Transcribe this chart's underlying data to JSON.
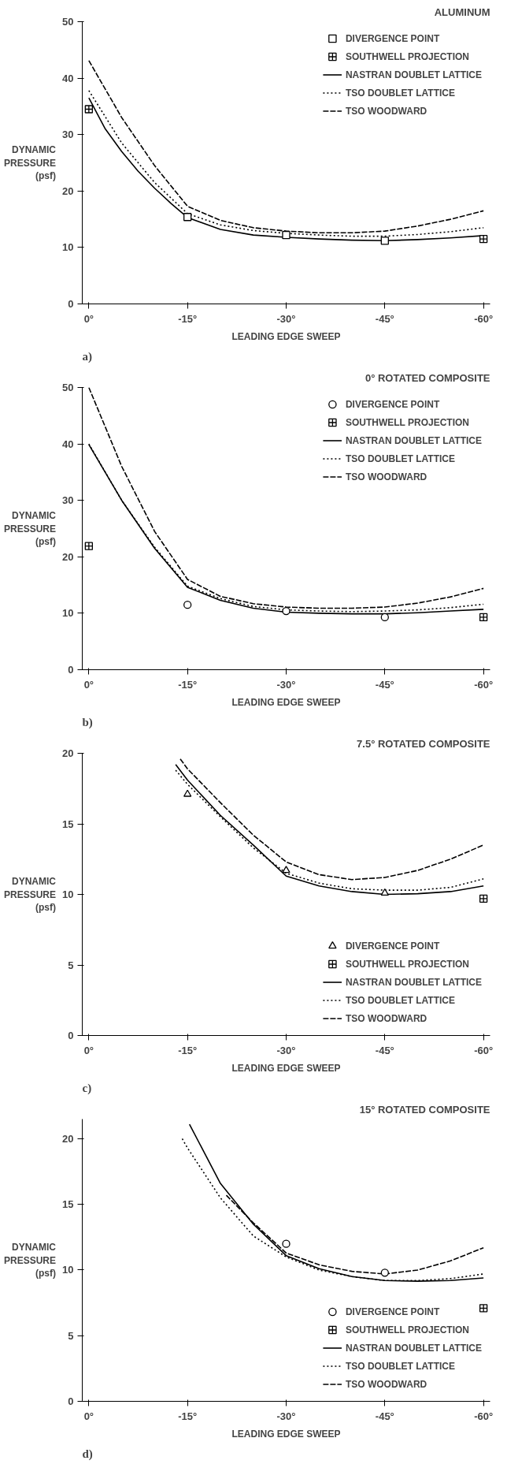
{
  "chart_data": [
    {
      "type": "line",
      "title": "ALUMINUM",
      "xlabel": "LEADING EDGE SWEEP",
      "ylabel": "DYNAMIC\nPRESSURE\n(psf)",
      "annotations": [
        "a)"
      ],
      "legend": "top right",
      "grid": false,
      "xlim": [
        1,
        -61
      ],
      "xticks": [
        {
          "value": 0,
          "label": "0°"
        },
        {
          "value": -15,
          "label": "-15°"
        },
        {
          "value": -30,
          "label": "-30°"
        },
        {
          "value": -45,
          "label": "-45°"
        },
        {
          "value": -60,
          "label": "-60°"
        }
      ],
      "ylim": [
        0,
        50
      ],
      "yticks": [
        0,
        10,
        20,
        30,
        40,
        50
      ],
      "series": [
        {
          "name": "DIVERGENCE POINT",
          "type": "scatter",
          "marker": "square",
          "color": "#000000",
          "x": [
            -15,
            -30,
            -45
          ],
          "values": [
            15.4,
            12.2,
            11.2
          ]
        },
        {
          "name": "SOUTHWELL PROJECTION",
          "type": "scatter",
          "marker": "cross",
          "color": "#000000",
          "x": [
            0,
            -60
          ],
          "values": [
            34.5,
            11.5
          ]
        },
        {
          "name": "NASTRAN DOUBLET LATTICE",
          "line_style": "solid",
          "color": "#000000",
          "x": [
            0,
            -2.5,
            -5,
            -7.5,
            -10,
            -12.5,
            -15,
            -20,
            -25,
            -30,
            -35,
            -40,
            -45,
            -50,
            -55,
            -60
          ],
          "values": [
            36.5,
            31,
            27,
            23.5,
            20.5,
            17.8,
            15.3,
            13.2,
            12.2,
            11.8,
            11.5,
            11.3,
            11.2,
            11.4,
            11.7,
            12.1
          ]
        },
        {
          "name": "TSO DOUBLET LATTICE",
          "line_style": "dotted",
          "color": "#000000",
          "x": [
            0,
            -5,
            -10,
            -15,
            -20,
            -25,
            -30,
            -35,
            -40,
            -45,
            -50,
            -55,
            -60
          ],
          "values": [
            37.8,
            28.5,
            21.5,
            16,
            14,
            13,
            12.5,
            12.2,
            12,
            12,
            12.3,
            12.8,
            13.5
          ]
        },
        {
          "name": "TSO WOODWARD",
          "line_style": "dashed",
          "color": "#000000",
          "x": [
            0,
            -5,
            -10,
            -15,
            -20,
            -25,
            -30,
            -35,
            -40,
            -45,
            -50,
            -55,
            -60
          ],
          "values": [
            43.1,
            33,
            24.5,
            17.3,
            14.8,
            13.5,
            12.9,
            12.6,
            12.6,
            12.9,
            13.8,
            15,
            16.5
          ]
        }
      ]
    },
    {
      "type": "line",
      "title": "0° ROTATED COMPOSITE",
      "xlabel": "LEADING EDGE SWEEP",
      "ylabel": "DYNAMIC\nPRESSURE\n(psf)",
      "annotations": [
        "b)"
      ],
      "legend": "top right",
      "grid": false,
      "xlim": [
        1,
        -61
      ],
      "xticks": [
        {
          "value": 0,
          "label": "0°"
        },
        {
          "value": -15,
          "label": "-15°"
        },
        {
          "value": -30,
          "label": "-30°"
        },
        {
          "value": -45,
          "label": "-45°"
        },
        {
          "value": -60,
          "label": "-60°"
        }
      ],
      "ylim": [
        0,
        50
      ],
      "yticks": [
        0,
        10,
        20,
        30,
        40,
        50
      ],
      "series": [
        {
          "name": "DIVERGENCE POINT",
          "type": "scatter",
          "marker": "circle",
          "color": "#000000",
          "x": [
            -15,
            -30,
            -45
          ],
          "values": [
            11.5,
            10.4,
            9.3
          ]
        },
        {
          "name": "SOUTHWELL PROJECTION",
          "type": "scatter",
          "marker": "cross",
          "color": "#000000",
          "x": [
            0,
            -60
          ],
          "values": [
            21.9,
            9.3
          ]
        },
        {
          "name": "NASTRAN DOUBLET LATTICE",
          "line_style": "solid",
          "color": "#000000",
          "x": [
            0,
            -5,
            -10,
            -15,
            -20,
            -25,
            -30,
            -35,
            -40,
            -45,
            -50,
            -55,
            -60
          ],
          "values": [
            39.9,
            30,
            21.5,
            14.6,
            12.3,
            10.9,
            10.2,
            10,
            9.9,
            9.9,
            10.1,
            10.4,
            10.7
          ]
        },
        {
          "name": "TSO DOUBLET LATTICE",
          "line_style": "dotted",
          "color": "#000000",
          "x": [
            0,
            -5,
            -10,
            -15,
            -20,
            -25,
            -30,
            -35,
            -40,
            -45,
            -50,
            -55,
            -60
          ],
          "values": [
            40,
            30,
            21.7,
            14.8,
            12.6,
            11.2,
            10.6,
            10.4,
            10.3,
            10.4,
            10.6,
            11,
            11.6
          ]
        },
        {
          "name": "TSO WOODWARD",
          "line_style": "dashed",
          "color": "#000000",
          "x": [
            0,
            -5,
            -10,
            -15,
            -20,
            -25,
            -30,
            -35,
            -40,
            -45,
            -50,
            -55,
            -60
          ],
          "values": [
            50,
            36,
            24.5,
            16,
            13,
            11.7,
            11.1,
            10.9,
            10.9,
            11.1,
            11.8,
            12.9,
            14.4
          ]
        }
      ]
    },
    {
      "type": "line",
      "title": "7.5° ROTATED COMPOSITE",
      "xlabel": "LEADING EDGE SWEEP",
      "ylabel": "DYNAMIC\nPRESSURE\n(psf)",
      "annotations": [
        "c)"
      ],
      "legend": "bottom right",
      "grid": false,
      "xlim": [
        1,
        -61
      ],
      "xticks": [
        {
          "value": 0,
          "label": "0°"
        },
        {
          "value": -15,
          "label": "-15°"
        },
        {
          "value": -30,
          "label": "-30°"
        },
        {
          "value": -45,
          "label": "-45°"
        },
        {
          "value": -60,
          "label": "-60°"
        }
      ],
      "ylim": [
        0,
        20
      ],
      "yticks": [
        0,
        5,
        10,
        15,
        20
      ],
      "series": [
        {
          "name": "DIVERGENCE POINT",
          "type": "scatter",
          "marker": "triangle",
          "color": "#000000",
          "x": [
            -15,
            -30,
            -45
          ],
          "values": [
            17.1,
            11.7,
            10.1
          ]
        },
        {
          "name": "SOUTHWELL PROJECTION",
          "type": "scatter",
          "marker": "cross",
          "color": "#000000",
          "x": [
            -60
          ],
          "values": [
            9.7
          ]
        },
        {
          "name": "NASTRAN DOUBLET LATTICE",
          "line_style": "solid",
          "color": "#000000",
          "x": [
            -13.2,
            -15,
            -20,
            -25,
            -30,
            -35,
            -40,
            -45,
            -50,
            -55,
            -60
          ],
          "values": [
            19.2,
            18.1,
            15.6,
            13.5,
            11.3,
            10.6,
            10.2,
            10,
            10.05,
            10.2,
            10.6
          ]
        },
        {
          "name": "TSO DOUBLET LATTICE",
          "line_style": "dotted",
          "color": "#000000",
          "x": [
            -13.2,
            -15,
            -20,
            -25,
            -30,
            -35,
            -40,
            -45,
            -50,
            -55,
            -60
          ],
          "values": [
            18.8,
            17.8,
            15.5,
            13.3,
            11.5,
            10.8,
            10.4,
            10.3,
            10.3,
            10.5,
            11.1
          ]
        },
        {
          "name": "TSO WOODWARD",
          "line_style": "dashed",
          "color": "#000000",
          "x": [
            -13.9,
            -15,
            -20,
            -25,
            -30,
            -35,
            -40,
            -45,
            -50,
            -55,
            -60
          ],
          "values": [
            19.6,
            18.9,
            16.5,
            14.2,
            12.3,
            11.4,
            11.05,
            11.2,
            11.7,
            12.5,
            13.5
          ]
        }
      ]
    },
    {
      "type": "line",
      "title": "15° ROTATED COMPOSITE",
      "xlabel": "LEADING EDGE SWEEP",
      "ylabel": "DYNAMIC\nPRESSURE\n(psf)",
      "annotations": [
        "d)"
      ],
      "legend": "bottom right",
      "grid": false,
      "xlim": [
        1,
        -61
      ],
      "xticks": [
        {
          "value": 0,
          "label": "0°"
        },
        {
          "value": -15,
          "label": "-15°"
        },
        {
          "value": -30,
          "label": "-30°"
        },
        {
          "value": -45,
          "label": "-45°"
        },
        {
          "value": -60,
          "label": "-60°"
        }
      ],
      "ylim": [
        0,
        21.5
      ],
      "yticks": [
        0,
        5,
        10,
        15,
        20
      ],
      "series": [
        {
          "name": "DIVERGENCE POINT",
          "type": "scatter",
          "marker": "circle",
          "color": "#000000",
          "x": [
            -30,
            -45
          ],
          "values": [
            12.0,
            9.8
          ]
        },
        {
          "name": "SOUTHWELL PROJECTION",
          "type": "scatter",
          "marker": "cross",
          "color": "#000000",
          "x": [
            -60
          ],
          "values": [
            7.1
          ]
        },
        {
          "name": "NASTRAN DOUBLET LATTICE",
          "line_style": "solid",
          "color": "#000000",
          "x": [
            -15.3,
            -20,
            -25,
            -30,
            -35,
            -40,
            -45,
            -50,
            -55,
            -60
          ],
          "values": [
            21.1,
            16.6,
            13.5,
            11.1,
            10.1,
            9.5,
            9.2,
            9.15,
            9.2,
            9.4
          ]
        },
        {
          "name": "TSO DOUBLET LATTICE",
          "line_style": "dotted",
          "color": "#000000",
          "x": [
            -14.2,
            -15,
            -20,
            -25,
            -30,
            -35,
            -40,
            -45,
            -50,
            -55,
            -60
          ],
          "values": [
            20,
            19.3,
            15.5,
            12.6,
            11,
            10,
            9.5,
            9.2,
            9.2,
            9.35,
            9.7
          ]
        },
        {
          "name": "TSO WOODWARD",
          "line_style": "dashed",
          "color": "#000000",
          "x": [
            -20.9,
            -25,
            -30,
            -35,
            -40,
            -45,
            -50,
            -55,
            -60
          ],
          "values": [
            15.7,
            13.6,
            11.3,
            10.4,
            9.9,
            9.7,
            10,
            10.7,
            11.7
          ]
        }
      ]
    }
  ]
}
